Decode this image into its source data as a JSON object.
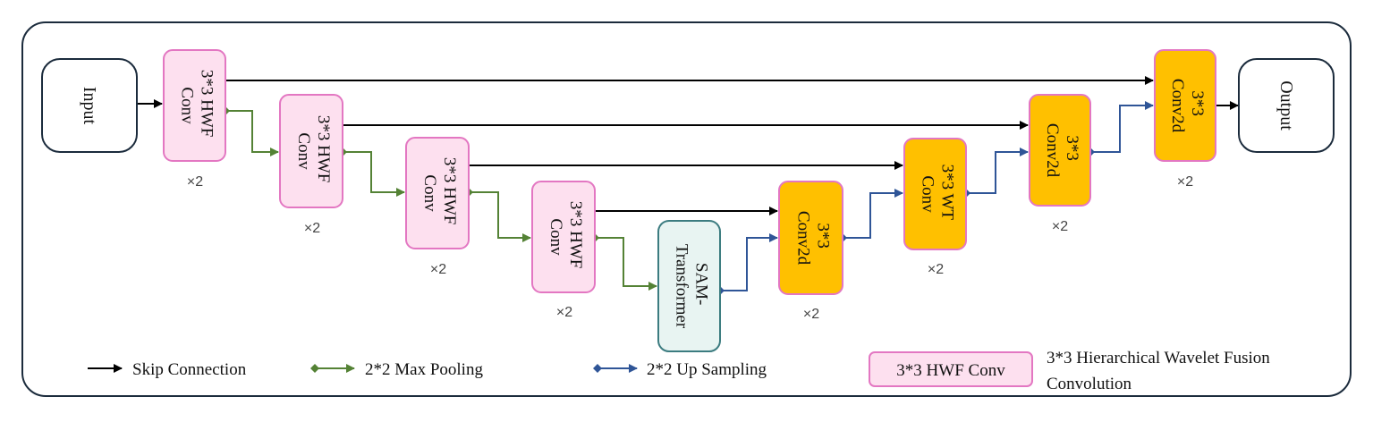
{
  "nodes": {
    "input": "Input",
    "output": "Output",
    "enc1": [
      "3*3 HWF",
      "Conv"
    ],
    "enc2": [
      "3*3 HWF",
      "Conv"
    ],
    "enc3": [
      "3*3 HWF",
      "Conv"
    ],
    "enc4": [
      "3*3 HWF",
      "Conv"
    ],
    "sam": [
      "SAM-",
      "Transformer"
    ],
    "dec1": [
      "3*3",
      "Conv2d"
    ],
    "dec2": [
      "3*3 WT",
      "Conv"
    ],
    "dec3": [
      "3*3",
      "Conv2d"
    ],
    "dec4": [
      "3*3",
      "Conv2d"
    ]
  },
  "multipliers": {
    "enc1": "×2",
    "enc2": "×2",
    "enc3": "×2",
    "enc4": "×2",
    "dec1": "×2",
    "dec2": "×2",
    "dec3": "×2",
    "dec4": "×2"
  },
  "legend": {
    "skip": "Skip Connection",
    "pool": "2*2 Max Pooling",
    "up": "2*2 Up Sampling",
    "key_box": "3*3 HWF Conv",
    "key_desc_1": "3*3 Hierarchical Wavelet Fusion",
    "key_desc_2": "Convolution"
  },
  "colors": {
    "hwf_fill": "#fde0ef",
    "hwf_border": "#e377c2",
    "conv_fill": "#ffc000",
    "sam_fill": "#e8f4f2",
    "skip": "#000000",
    "pool": "#548235",
    "up": "#2f5597"
  }
}
